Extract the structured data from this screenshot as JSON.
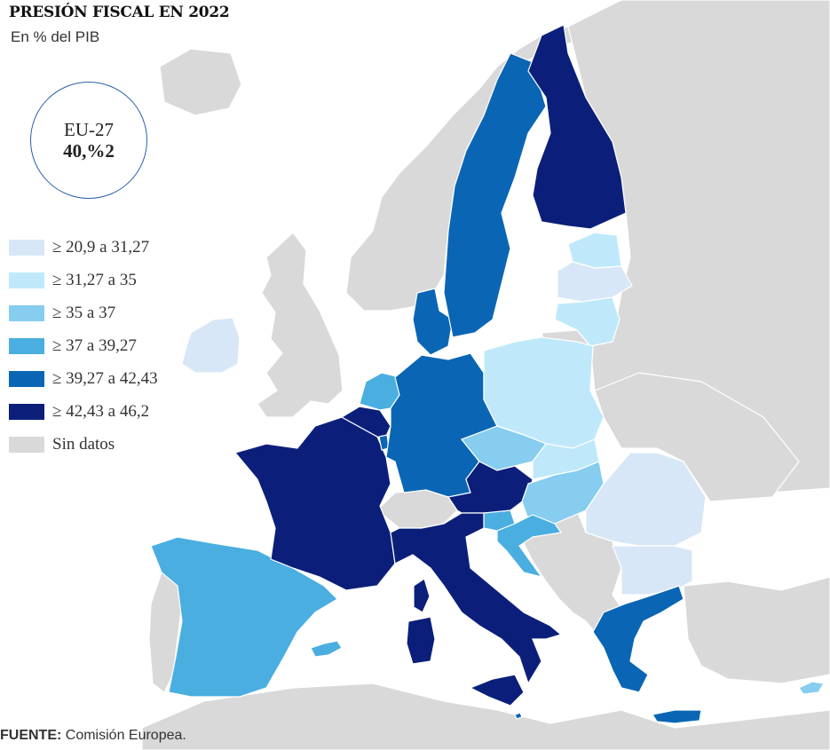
{
  "title": "PRESIÓN FISCAL EN 2022",
  "subtitle": "En % del PIB",
  "eu_badge": {
    "label": "EU-27",
    "value": "40,%2"
  },
  "legend": [
    {
      "label": "≥ 20,9 a 31,27",
      "color": "#d7e7f7"
    },
    {
      "label": "≥ 31,27 a 35",
      "color": "#bfe9fb"
    },
    {
      "label": "≥ 35 a 37",
      "color": "#86cdef"
    },
    {
      "label": "≥ 37 a 39,27",
      "color": "#4aaee0"
    },
    {
      "label": "≥ 39,27 a 42,43",
      "color": "#0a66b4"
    },
    {
      "label": "≥ 42,43 a 46,2",
      "color": "#0b1f7a"
    },
    {
      "label": "Sin datos",
      "color": "#d9d9d9"
    }
  ],
  "map_colors": {
    "sea": "#ffffff",
    "non_eu_land": "#d9d9d9",
    "border": "#ffffff"
  },
  "regions": [
    {
      "name": "Irlanda",
      "class": 0
    },
    {
      "name": "España",
      "class": 3
    },
    {
      "name": "Francia",
      "class": 5
    },
    {
      "name": "Bélgica",
      "class": 5
    },
    {
      "name": "Países Bajos",
      "class": 3
    },
    {
      "name": "Luxemburgo",
      "class": 4
    },
    {
      "name": "Alemania",
      "class": 4
    },
    {
      "name": "Dinamarca",
      "class": 4
    },
    {
      "name": "Suecia",
      "class": 4
    },
    {
      "name": "Finlandia",
      "class": 5
    },
    {
      "name": "Estonia",
      "class": 1
    },
    {
      "name": "Letonia",
      "class": 0
    },
    {
      "name": "Lituania",
      "class": 1
    },
    {
      "name": "Polonia",
      "class": 1
    },
    {
      "name": "Chequia",
      "class": 2
    },
    {
      "name": "Eslovaquia",
      "class": 1
    },
    {
      "name": "Austria",
      "class": 5
    },
    {
      "name": "Hungría",
      "class": 2
    },
    {
      "name": "Rumanía",
      "class": 0
    },
    {
      "name": "Bulgaria",
      "class": 0
    },
    {
      "name": "Eslovenia",
      "class": 3
    },
    {
      "name": "Croacia",
      "class": 3
    },
    {
      "name": "Italia",
      "class": 5
    },
    {
      "name": "Grecia",
      "class": 4
    },
    {
      "name": "Chipre",
      "class": 2
    },
    {
      "name": "Malta",
      "class": 4
    },
    {
      "name": "Suiza",
      "class": 6
    }
  ],
  "source": {
    "key": "FUENTE:",
    "text": " Comisión Europea."
  }
}
